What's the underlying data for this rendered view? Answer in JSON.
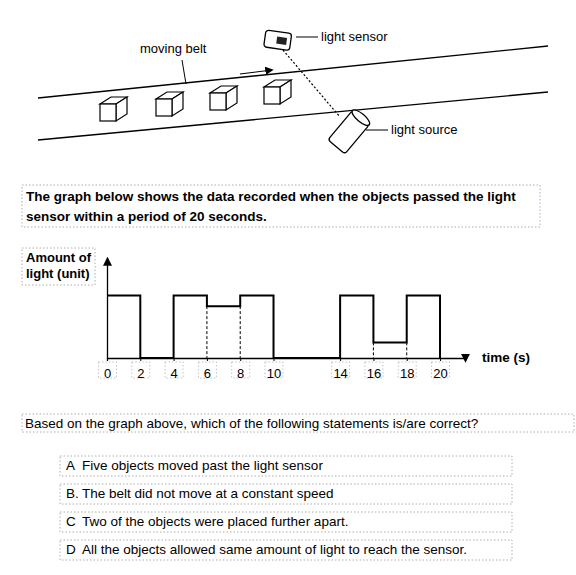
{
  "diagram": {
    "labels": {
      "belt": "moving belt",
      "sensor": "light sensor",
      "source": "light source"
    }
  },
  "intro": "The graph below shows the data recorded when the objects passed the light sensor within a period of 20 seconds.",
  "chart_data": {
    "type": "line",
    "ylabel": "Amount of light (unit)",
    "xlabel": "time (s)",
    "x": [
      0,
      0,
      2,
      2,
      4,
      4,
      6,
      6,
      8,
      8,
      10,
      10,
      14,
      14,
      16,
      16,
      18,
      18,
      20,
      20
    ],
    "values": [
      0,
      10,
      10,
      0,
      0,
      10,
      10,
      8.3,
      8.3,
      10,
      10,
      0,
      0,
      10,
      10,
      2.5,
      2.5,
      10,
      10,
      0
    ],
    "color": "#000000",
    "line_style": "solid",
    "xlim": [
      0,
      21.5
    ],
    "ylim": [
      0,
      16
    ],
    "xticks": [
      0,
      2,
      4,
      6,
      8,
      10,
      14,
      16,
      18,
      20
    ],
    "tick_labels": "x"
  },
  "question": "Based on the graph above, which of the following statements is/are correct?",
  "options": [
    {
      "label": "A",
      "text": "Five objects moved past the light sensor"
    },
    {
      "label": "B.",
      "text": "The belt did not move at a constant speed"
    },
    {
      "label": "C",
      "text": "Two of the objects were placed further apart."
    },
    {
      "label": "D",
      "text": "All the objects allowed same amount of light to reach the sensor."
    }
  ]
}
